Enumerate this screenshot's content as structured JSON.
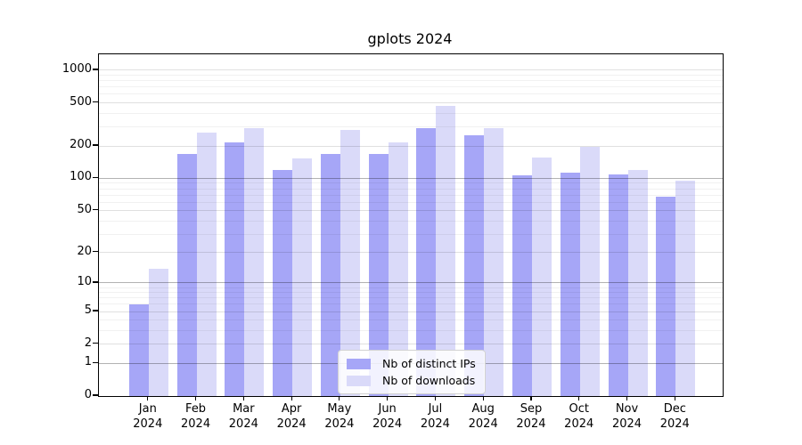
{
  "chart_data": {
    "type": "bar",
    "title": "gplots 2024",
    "categories": [
      "Jan 2024",
      "Feb 2024",
      "Mar 2024",
      "Apr 2024",
      "May 2024",
      "Jun 2024",
      "Jul 2024",
      "Aug 2024",
      "Sep 2024",
      "Oct 2024",
      "Nov 2024",
      "Dec 2024"
    ],
    "series": [
      {
        "name": "Nb of distinct IPs",
        "color": "#a6a6f7",
        "values": [
          6,
          170,
          215,
          120,
          170,
          170,
          295,
          250,
          106,
          114,
          108,
          68
        ]
      },
      {
        "name": "Nb of downloads",
        "color": "#dadaf9",
        "values": [
          14,
          267,
          290,
          153,
          283,
          217,
          472,
          295,
          157,
          195,
          120,
          95
        ]
      }
    ],
    "yscale": "log1p",
    "yticks": [
      0,
      1,
      2,
      5,
      10,
      20,
      50,
      100,
      200,
      500,
      1000
    ],
    "ylim": [
      0,
      1400
    ],
    "xlabel": "",
    "ylabel": "",
    "grid": true,
    "gridlines_over_bars": true,
    "legend_position": "lower center",
    "background_color": "#ffffff"
  }
}
